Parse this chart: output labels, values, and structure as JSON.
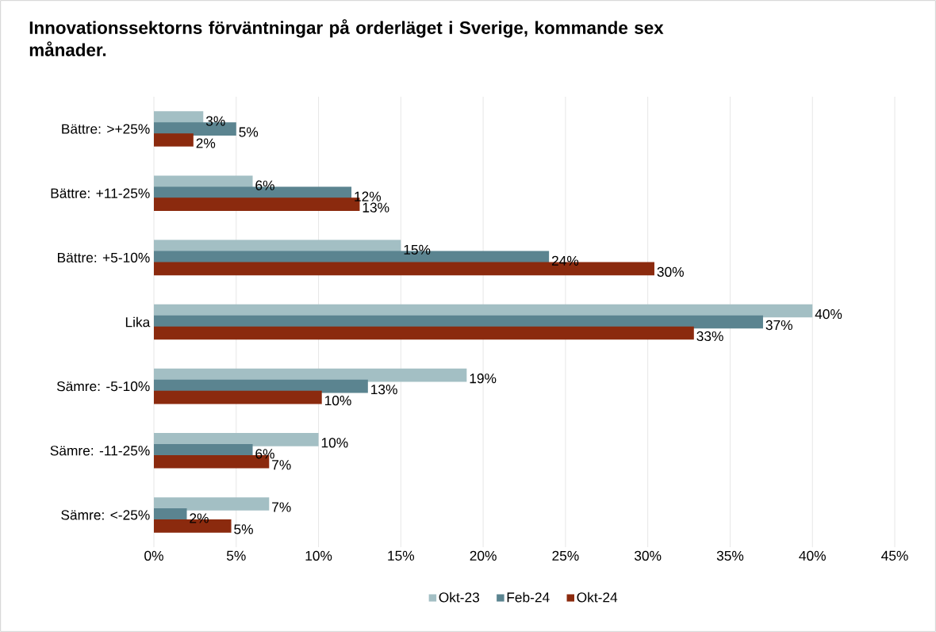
{
  "chart_data": {
    "type": "bar",
    "orientation": "horizontal",
    "title": "Innovationssektorns förväntningar på orderläget i Sverige, kommande sex månader.",
    "categories": [
      "Bättre: >+25%",
      "Bättre: +11-25%",
      "Bättre: +5-10%",
      "Lika",
      "Sämre: -5-10%",
      "Sämre: -11-25%",
      "Sämre: <-25%"
    ],
    "series": [
      {
        "name": "Okt-23",
        "color": "#a3bfc4",
        "values": [
          3,
          6,
          15,
          40,
          19,
          10,
          7
        ],
        "value_labels": [
          "3%",
          "6%",
          "15%",
          "40%",
          "19%",
          "10%",
          "7%"
        ]
      },
      {
        "name": "Feb-24",
        "color": "#5b8490",
        "values": [
          5,
          12,
          24,
          37,
          13,
          6,
          2
        ],
        "value_labels": [
          "5%",
          "12%",
          "24%",
          "37%",
          "13%",
          "6%",
          "2%"
        ]
      },
      {
        "name": "Okt-24",
        "color": "#8b2a0e",
        "values": [
          2.4,
          12.5,
          30.4,
          32.8,
          10.2,
          7.0,
          4.7
        ],
        "value_labels": [
          "2%",
          "13%",
          "30%",
          "33%",
          "10%",
          "7%",
          "5%"
        ]
      }
    ],
    "xlim": [
      0,
      45
    ],
    "xticks": [
      {
        "value": 0,
        "label": "0%"
      },
      {
        "value": 5,
        "label": "5%"
      },
      {
        "value": 10,
        "label": "10%"
      },
      {
        "value": 15,
        "label": "15%"
      },
      {
        "value": 20,
        "label": "20%"
      },
      {
        "value": 25,
        "label": "25%"
      },
      {
        "value": 30,
        "label": "30%"
      },
      {
        "value": 35,
        "label": "35%"
      },
      {
        "value": 40,
        "label": "40%"
      },
      {
        "value": 45,
        "label": "45%"
      }
    ],
    "grid": "x",
    "legend": "bottom"
  }
}
